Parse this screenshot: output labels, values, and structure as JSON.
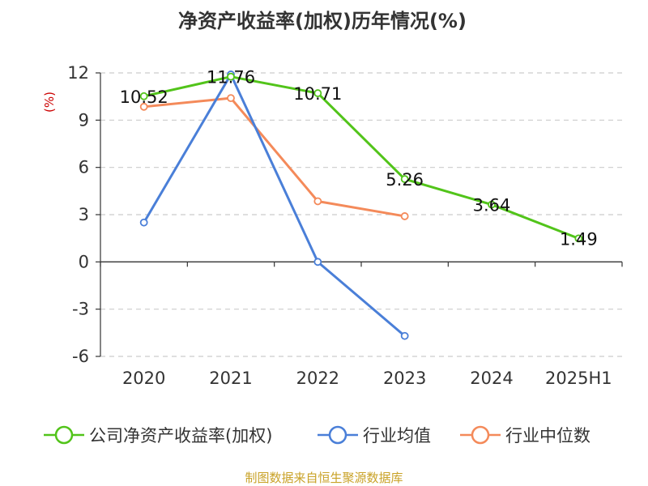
{
  "title": "净资产收益率(加权)历年情况(%)",
  "source_note": "制图数据来自恒生聚源数据库",
  "colors": {
    "company": "#52c41a",
    "industry_avg": "#4a7fd8",
    "industry_median": "#f48a5a",
    "axis": "#333333",
    "grid": "#cccccc",
    "source": "#c9a227",
    "unit": "#cc0000"
  },
  "chart_data": {
    "type": "line",
    "title": "净资产收益率(加权)历年情况(%)",
    "xlabel": "",
    "ylabel": "(%)",
    "categories": [
      "2020",
      "2021",
      "2022",
      "2023",
      "2024",
      "2025H1"
    ],
    "ylim": [
      -6,
      12
    ],
    "yticks": [
      12,
      9,
      6,
      3,
      0,
      -3,
      -6
    ],
    "grid": true,
    "legend_position": "bottom",
    "series": [
      {
        "name": "公司净资产收益率(加权)",
        "color_key": "company",
        "values": [
          10.52,
          11.76,
          10.71,
          5.26,
          3.64,
          1.49
        ],
        "labels": [
          "10.52",
          "11.76",
          "10.71",
          "5.26",
          "3.64",
          "1.49"
        ],
        "show_labels": true
      },
      {
        "name": "行业均值",
        "color_key": "industry_avg",
        "values": [
          2.5,
          11.9,
          0.0,
          -4.7,
          null,
          null
        ],
        "show_labels": false
      },
      {
        "name": "行业中位数",
        "color_key": "industry_median",
        "values": [
          9.85,
          10.4,
          3.85,
          2.9,
          null,
          null
        ],
        "show_labels": false
      }
    ]
  }
}
